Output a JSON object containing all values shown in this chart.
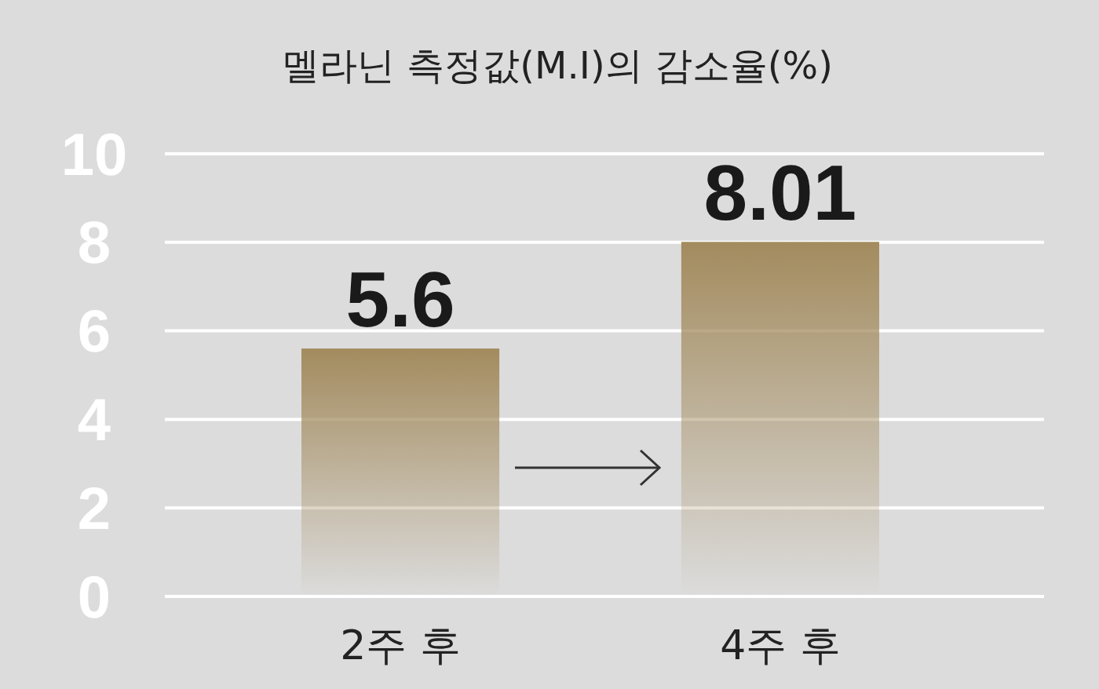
{
  "chart_data": {
    "type": "bar",
    "title": "멜라닌 측정값(M.I)의 감소율(%)",
    "categories": [
      "2주 후",
      "4주 후"
    ],
    "values": [
      5.6,
      8.01
    ],
    "color": "#a38b5e",
    "ylim": [
      0,
      10
    ],
    "yticks": [
      0,
      2,
      4,
      6,
      8,
      10
    ],
    "grid": "y",
    "data_labels": true
  }
}
